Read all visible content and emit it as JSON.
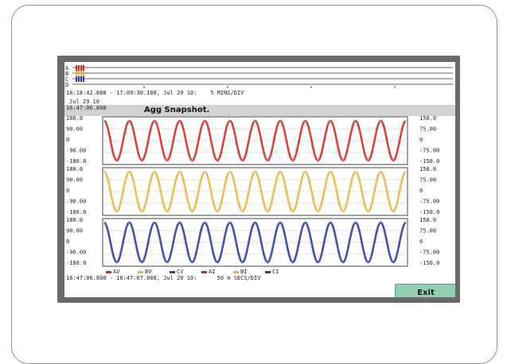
{
  "overview": {
    "track_labels": [
      "A",
      "B",
      "C",
      "D"
    ],
    "time_range": "16:18:42.888 - 17:09:30.108, Jul 29 10:    5 MINS/DIV"
  },
  "snapshot": {
    "timestamp_date": "Jul 29 10",
    "timestamp_time": "16:47:06.800",
    "title": "Agg Snapshot."
  },
  "chart_data": [
    {
      "type": "line",
      "title": "",
      "y_left_ticks": [
        "180.0",
        "90.00",
        "0",
        "-90.00",
        "-180.0"
      ],
      "y_right_ticks": [
        "150.0",
        "75.00",
        "0",
        "-75.00",
        "-150.0"
      ],
      "ylim": [
        -180,
        180
      ],
      "cycles": 12,
      "series": [
        {
          "name": "AV",
          "color": "#c92c20",
          "amplitude": 150
        },
        {
          "name": "AI",
          "color": "#e8615a",
          "amplitude": 150
        }
      ]
    },
    {
      "type": "line",
      "title": "",
      "y_left_ticks": [
        "180.0",
        "90.00",
        "0",
        "-90.00",
        "-180.0"
      ],
      "y_right_ticks": [
        "150.0",
        "75.00",
        "0",
        "-75.00",
        "-150.0"
      ],
      "ylim": [
        -180,
        180
      ],
      "cycles": 12,
      "series": [
        {
          "name": "BV",
          "color": "#e8b23e",
          "amplitude": 150
        },
        {
          "name": "BI",
          "color": "#f2c96f",
          "amplitude": 150
        }
      ]
    },
    {
      "type": "line",
      "title": "",
      "y_left_ticks": [
        "180.0",
        "90.00",
        "0",
        "-90.00",
        "-180.0"
      ],
      "y_right_ticks": [
        "150.0",
        "75.00",
        "0",
        "-75.00",
        "-150.0"
      ],
      "ylim": [
        -180,
        180
      ],
      "cycles": 12,
      "series": [
        {
          "name": "CV",
          "color": "#2f3ea8",
          "amplitude": 150
        },
        {
          "name": "CI",
          "color": "#5968c4",
          "amplitude": 150
        }
      ]
    }
  ],
  "legend": [
    {
      "label": "AV",
      "color": "#c92c20"
    },
    {
      "label": "BV",
      "color": "#e8b23e"
    },
    {
      "label": "CV",
      "color": "#2f3ea8"
    },
    {
      "label": "AI",
      "color": "#c92c20"
    },
    {
      "label": "BI",
      "color": "#e8b23e"
    },
    {
      "label": "CI",
      "color": "#2f3ea8"
    }
  ],
  "bottom_time_range": "16:47:06.800 - 16:47:07.008, Jul 29 10:      50 m SECS/DIV",
  "buttons": {
    "exit_label": "Exit"
  },
  "colors": {
    "bezel": "#6a6a6a",
    "exit_button": "#8fd0b0",
    "title_bar": "#d2d2d2"
  }
}
